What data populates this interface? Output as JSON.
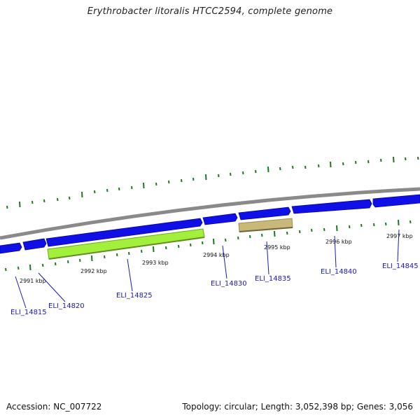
{
  "title": "Erythrobacter litoralis HTCC2594, complete genome",
  "footer": {
    "accession": "Accession: NC_007722",
    "stats": "Topology: circular; Length: 3,052,398 bp; Genes: 3,056"
  },
  "colors": {
    "backbone": "#8a8a8a",
    "gene_blue": "#1010e6",
    "gene_green": "#a2f03c",
    "gene_tan": "#c8b87a",
    "tick_green": "#1c7a1c",
    "label_blue": "#1a1ab8"
  },
  "scale": {
    "ticks": [
      {
        "label": "2991 kbp",
        "kbp": 2991
      },
      {
        "label": "2992 kbp",
        "kbp": 2992
      },
      {
        "label": "2993 kbp",
        "kbp": 2993
      },
      {
        "label": "2994 kbp",
        "kbp": 2994
      },
      {
        "label": "2995 kbp",
        "kbp": 2995
      },
      {
        "label": "2996 kbp",
        "kbp": 2996
      },
      {
        "label": "2997 kbp",
        "kbp": 2997
      }
    ]
  },
  "genes": [
    {
      "label": "ELI_14815"
    },
    {
      "label": "ELI_14820"
    },
    {
      "label": "ELI_14825"
    },
    {
      "label": "ELI_14830"
    },
    {
      "label": "ELI_14835"
    },
    {
      "label": "ELI_14840"
    },
    {
      "label": "ELI_14845"
    }
  ]
}
